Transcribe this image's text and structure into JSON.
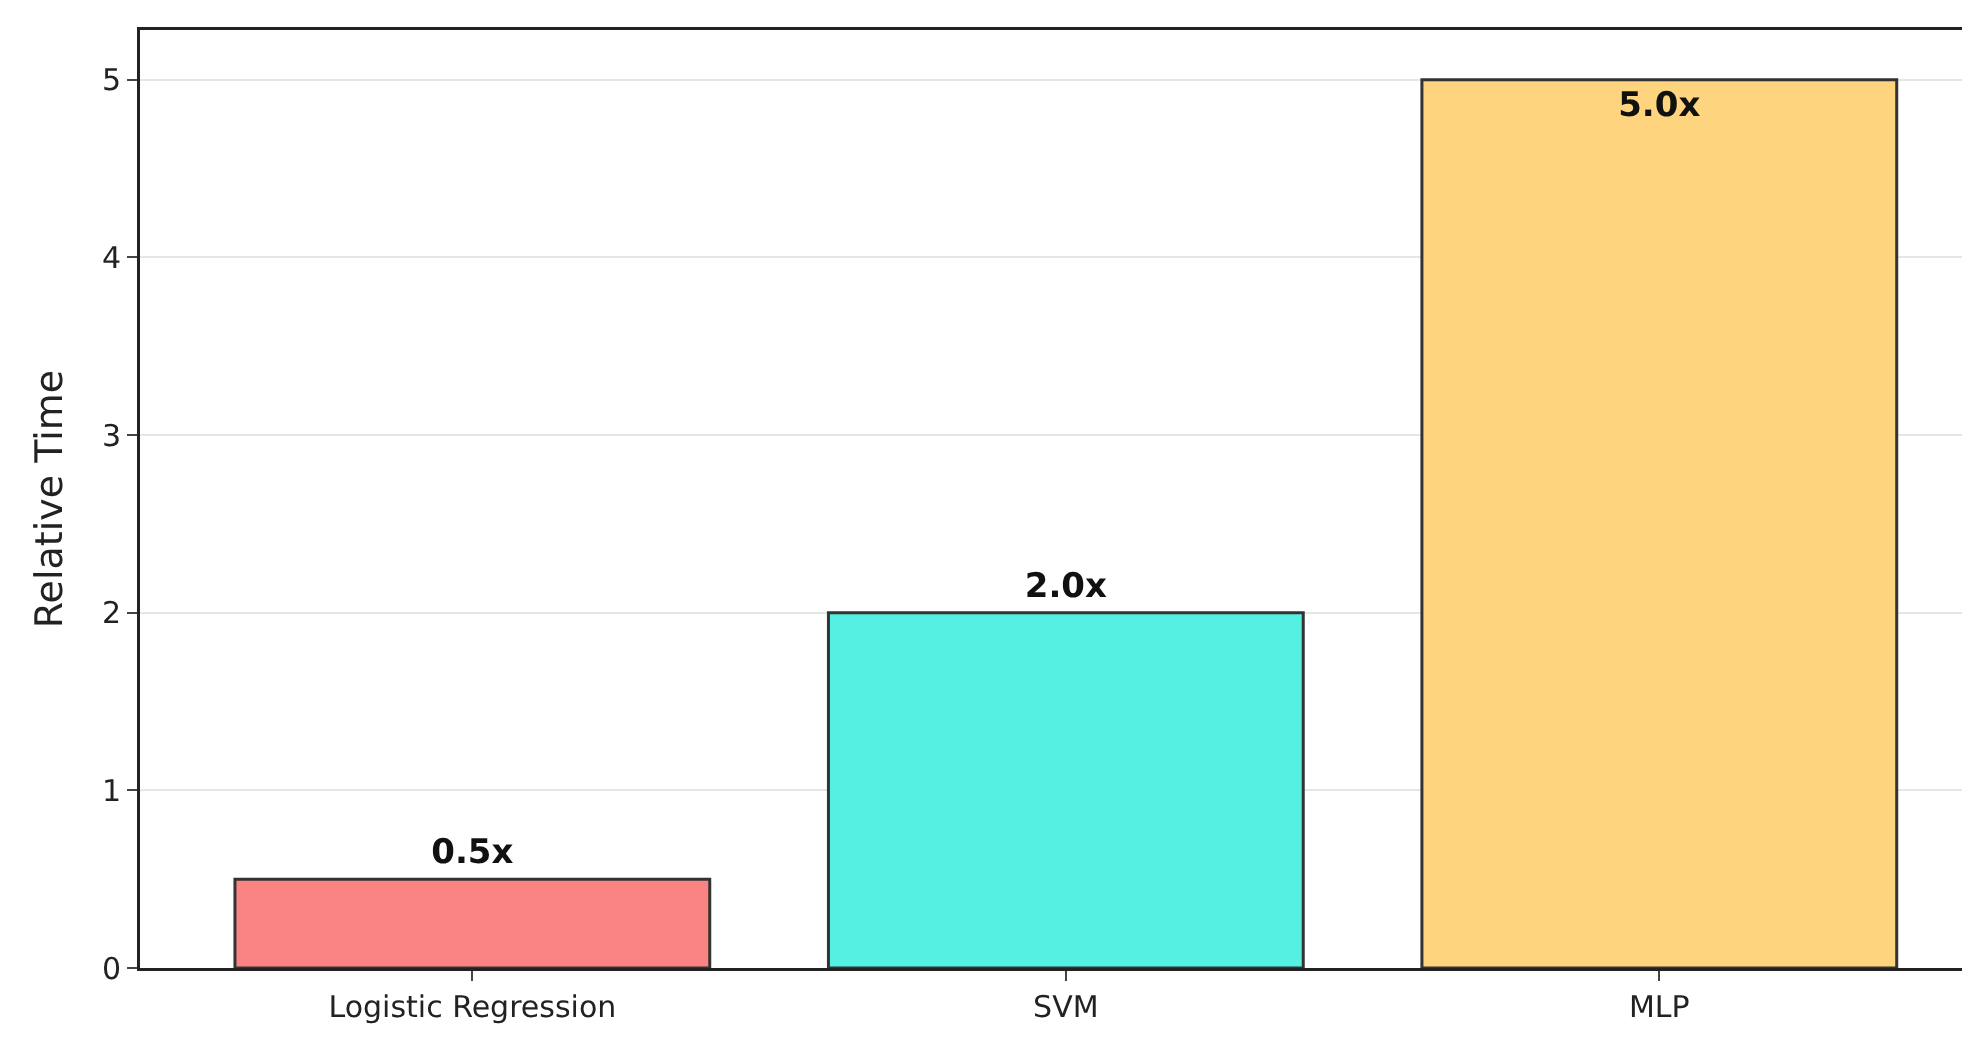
{
  "chart_data": {
    "type": "bar",
    "ylabel": "Relative Time",
    "categories": [
      "Logistic Regression",
      "SVM",
      "MLP"
    ],
    "values": [
      0.5,
      2.0,
      5.0
    ],
    "colors": [
      "#fa8484",
      "#56f0e2",
      "#fed57e"
    ],
    "value_labels": [
      "0.5x",
      "2.0x",
      "5.0x"
    ],
    "ylim": [
      0,
      5.28
    ],
    "yticks": [
      0,
      1,
      2,
      3,
      4,
      5
    ],
    "grid": "y"
  }
}
